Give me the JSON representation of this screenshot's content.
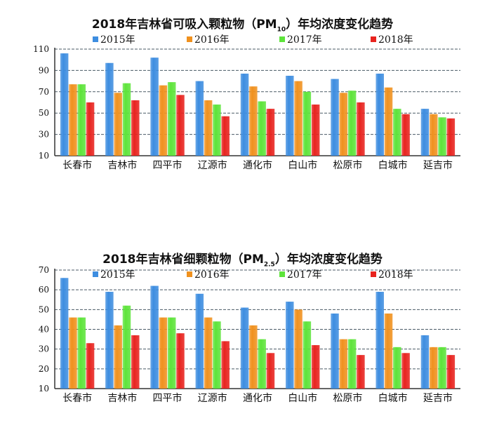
{
  "chart_data": [
    {
      "type": "bar",
      "title": "2018年吉林省可吸入颗粒物（PM",
      "title_sub": "10",
      "title_end": "）年均浓度变化趋势",
      "xlabel": "",
      "ylabel": "",
      "ylim": [
        10,
        110
      ],
      "yticks": [
        "10",
        "30",
        "50",
        "70",
        "90",
        "110"
      ],
      "yticks_values": [
        10,
        30,
        50,
        70,
        90,
        110
      ],
      "grid": true,
      "legend_position": "top",
      "categories": [
        "长春市",
        "吉林市",
        "四平市",
        "辽源市",
        "通化市",
        "白山市",
        "松原市",
        "白城市",
        "延吉市"
      ],
      "series": [
        {
          "name": "2015年",
          "color": "#3d8de0",
          "values": [
            106,
            97,
            102,
            80,
            87,
            85,
            82,
            87,
            54
          ]
        },
        {
          "name": "2016年",
          "color": "#f0911e",
          "values": [
            77,
            69,
            76,
            62,
            75,
            80,
            69,
            74,
            49
          ]
        },
        {
          "name": "2017年",
          "color": "#5de43a",
          "values": [
            77,
            78,
            79,
            58,
            61,
            70,
            71,
            54,
            46
          ]
        },
        {
          "name": "2018年",
          "color": "#e8231e",
          "values": [
            60,
            62,
            67,
            47,
            54,
            58,
            60,
            49,
            45
          ]
        }
      ]
    },
    {
      "type": "bar",
      "title": "2018年吉林省细颗粒物（PM",
      "title_sub": "2.5",
      "title_end": "）年均浓度变化趋势",
      "xlabel": "",
      "ylabel": "",
      "ylim": [
        10,
        70
      ],
      "yticks": [
        "10",
        "20",
        "30",
        "40",
        "50",
        "60",
        "70"
      ],
      "yticks_values": [
        10,
        20,
        30,
        40,
        50,
        60,
        70
      ],
      "grid": true,
      "legend_position": "top",
      "categories": [
        "长春市",
        "吉林市",
        "四平市",
        "辽源市",
        "通化市",
        "白山市",
        "松原市",
        "白城市",
        "延吉市"
      ],
      "series": [
        {
          "name": "2015年",
          "color": "#3d8de0",
          "values": [
            66,
            59,
            62,
            58,
            51,
            54,
            48,
            59,
            37
          ]
        },
        {
          "name": "2016年",
          "color": "#f0911e",
          "values": [
            46,
            42,
            46,
            46,
            42,
            50,
            35,
            48,
            31
          ]
        },
        {
          "name": "2017年",
          "color": "#5de43a",
          "values": [
            46,
            52,
            46,
            44,
            35,
            44,
            35,
            31,
            31
          ]
        },
        {
          "name": "2018年",
          "color": "#e8231e",
          "values": [
            33,
            37,
            38,
            34,
            28,
            32,
            27,
            28,
            27
          ]
        }
      ]
    }
  ]
}
